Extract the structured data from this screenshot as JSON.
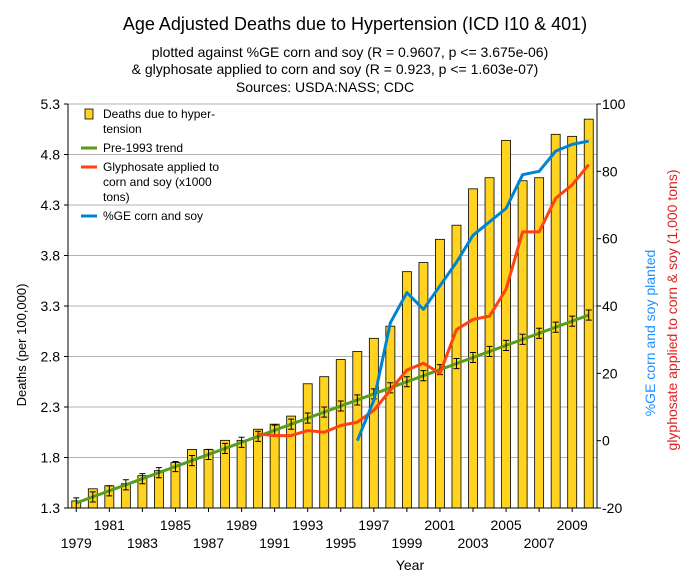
{
  "chart_data": {
    "type": "bar",
    "title": "Age Adjusted Deaths due to Hypertension (ICD I10 & 401)",
    "subtitle_lines": [
      "plotted against %GE corn and soy (R = 0.9607, p <= 3.675e-06)",
      "& glyphosate applied to corn and soy (R = 0.923, p <= 1.603e-07)",
      "Sources: USDA:NASS; CDC"
    ],
    "xlabel": "Year",
    "ylabel": "Deaths  (per 100,000)",
    "y2label_1": "%GE corn and soy planted",
    "y2label_2": "glyphosate applied to corn & soy (1,000 tons)",
    "colors": {
      "bars": "#FFD320",
      "bar_outline": "#000000",
      "trend": "#579D1C",
      "glyphosate": "#FF420E",
      "ge": "#0084D1",
      "grid": "#B3B3B3",
      "y2label_1": "#1E90FF",
      "y2label_2": "#E02020"
    },
    "ylim": [
      1.3,
      5.3
    ],
    "y_ticks": [
      "1.3",
      "1.8",
      "2.3",
      "2.8",
      "3.3",
      "3.8",
      "4.3",
      "4.8",
      "5.3"
    ],
    "y2lim": [
      -20,
      100
    ],
    "y2_ticks": [
      "-20",
      "0",
      "20",
      "40",
      "60",
      "80",
      "100"
    ],
    "xlim": [
      1978.5,
      2010.5
    ],
    "x_ticks_lower": [
      "1979",
      "1983",
      "1987",
      "1991",
      "1995",
      "1999",
      "2003",
      "2007"
    ],
    "x_ticks_upper": [
      "1981",
      "1985",
      "1989",
      "1993",
      "1997",
      "2001",
      "2005",
      "2009"
    ],
    "grid": true,
    "legend_placement": "top-left",
    "legend": [
      {
        "label_lines": [
          "Deaths due to hyper-",
          "tension"
        ],
        "kind": "bar"
      },
      {
        "label_lines": [
          "Pre-1993 trend"
        ],
        "kind": "trend"
      },
      {
        "label_lines": [
          "Glyphosate applied to",
          "corn and soy (x1000",
          "tons)"
        ],
        "kind": "glyphosate"
      },
      {
        "label_lines": [
          "%GE corn and soy"
        ],
        "kind": "ge"
      }
    ],
    "categories": [
      1979,
      1980,
      1981,
      1982,
      1983,
      1984,
      1985,
      1986,
      1987,
      1988,
      1989,
      1990,
      1991,
      1992,
      1993,
      1994,
      1995,
      1996,
      1997,
      1998,
      1999,
      2000,
      2001,
      2002,
      2003,
      2004,
      2005,
      2006,
      2007,
      2008,
      2009,
      2010
    ],
    "series": [
      {
        "name": "Deaths due to hyper-tension",
        "axis": "left",
        "values": [
          1.37,
          1.49,
          1.52,
          1.54,
          1.62,
          1.67,
          1.75,
          1.88,
          1.88,
          1.97,
          1.97,
          2.08,
          2.13,
          2.21,
          2.53,
          2.6,
          2.77,
          2.85,
          2.98,
          3.1,
          3.64,
          3.73,
          3.96,
          4.1,
          4.46,
          4.57,
          4.94,
          4.54,
          4.57,
          5.0,
          4.98,
          5.15
        ]
      },
      {
        "name": "Pre-1993 trend",
        "axis": "left",
        "values": [
          1.35,
          1.41,
          1.47,
          1.53,
          1.59,
          1.65,
          1.71,
          1.77,
          1.83,
          1.89,
          1.95,
          2.01,
          2.07,
          2.13,
          2.19,
          2.25,
          2.31,
          2.37,
          2.43,
          2.49,
          2.55,
          2.61,
          2.67,
          2.73,
          2.79,
          2.85,
          2.91,
          2.97,
          3.03,
          3.09,
          3.15,
          3.21
        ],
        "error": 0.05
      },
      {
        "name": "Glyphosate applied to corn and soy (x1000 tons)",
        "axis": "right",
        "x": [
          1990,
          1991,
          1992,
          1993,
          1994,
          1995,
          1996,
          1997,
          1998,
          1999,
          2000,
          2001,
          2002,
          2003,
          2004,
          2005,
          2006,
          2007,
          2008,
          2009,
          2010
        ],
        "values": [
          2,
          1.5,
          1.5,
          3,
          2.5,
          4.5,
          5.5,
          9,
          15,
          21,
          23,
          20,
          33,
          36,
          37,
          45,
          62,
          62,
          72,
          76,
          82
        ]
      },
      {
        "name": "%GE corn and soy",
        "axis": "right",
        "x": [
          1996,
          1997,
          1998,
          1999,
          2000,
          2001,
          2002,
          2003,
          2004,
          2005,
          2006,
          2007,
          2008,
          2009,
          2010
        ],
        "values": [
          0,
          12,
          35,
          44,
          39,
          46,
          53,
          61,
          65,
          69,
          79,
          80,
          86,
          88,
          89
        ]
      }
    ]
  }
}
